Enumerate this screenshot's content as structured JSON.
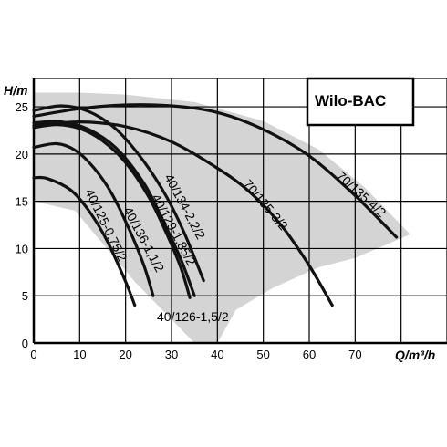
{
  "chart_data": {
    "type": "line",
    "title": "Wilo-BAC",
    "xlabel": "Q/m³/h",
    "ylabel": "H/m",
    "xlim": [
      0,
      90
    ],
    "ylim": [
      0,
      28
    ],
    "x_ticks": [
      0,
      10,
      20,
      30,
      40,
      50,
      60,
      70
    ],
    "y_ticks": [
      0,
      5,
      10,
      15,
      20,
      25
    ],
    "grid": true,
    "legend": "none",
    "colors": {
      "curve": "#111111",
      "grid": "#000000",
      "region": "#d4d4d4"
    },
    "operating_region": [
      [
        0,
        26.5
      ],
      [
        10,
        26.5
      ],
      [
        20,
        26.3
      ],
      [
        35,
        25.5
      ],
      [
        50,
        23.5
      ],
      [
        62,
        20.5
      ],
      [
        72,
        16.5
      ],
      [
        82,
        11.5
      ],
      [
        70,
        9
      ],
      [
        62,
        8
      ],
      [
        52,
        5.8
      ],
      [
        44,
        3.5
      ],
      [
        40,
        0
      ],
      [
        35,
        0
      ],
      [
        22,
        6.5
      ],
      [
        9,
        14
      ],
      [
        0,
        15
      ]
    ],
    "series": [
      {
        "name": "40/125-0,75/2",
        "x": [
          0,
          3,
          8,
          12,
          16,
          20,
          22
        ],
        "y": [
          17.5,
          17.4,
          16.2,
          14,
          10.8,
          6.5,
          4
        ]
      },
      {
        "name": "40/136-1,1/2",
        "x": [
          0,
          5,
          9,
          13,
          17,
          21,
          24,
          26
        ],
        "y": [
          20.7,
          21.1,
          20.4,
          18.6,
          15.8,
          11.8,
          8.2,
          5
        ]
      },
      {
        "name": "40/126-1,5/2",
        "x": [
          0,
          5,
          10,
          15,
          20,
          25,
          29,
          32,
          34
        ],
        "y": [
          22.8,
          23.1,
          22.7,
          21.4,
          19.1,
          15.5,
          11.5,
          8,
          4.8
        ]
      },
      {
        "name": "40/129-1,85/2",
        "x": [
          0,
          6,
          12,
          18,
          24,
          28,
          32,
          35
        ],
        "y": [
          23.3,
          23.4,
          22.6,
          20.6,
          16.9,
          13.1,
          8.9,
          5
        ]
      },
      {
        "name": "40/134-2,2/2",
        "x": [
          0,
          6,
          12,
          18,
          24,
          29,
          33,
          37
        ],
        "y": [
          24.6,
          25.1,
          24.5,
          22.6,
          19.2,
          15.4,
          11.4,
          6.6
        ]
      },
      {
        "name": "70/135-3/2",
        "x": [
          0,
          10,
          20,
          30,
          40,
          47,
          54,
          60,
          65
        ],
        "y": [
          23,
          23.4,
          22.9,
          21.3,
          18.5,
          16,
          12.4,
          8.2,
          4
        ]
      },
      {
        "name": "70/135-4/2",
        "x": [
          0,
          10,
          20,
          30,
          40,
          50,
          60,
          70,
          79
        ],
        "y": [
          24,
          24.8,
          25.2,
          25.1,
          24.4,
          22.6,
          19.8,
          15.6,
          11.2
        ]
      }
    ]
  }
}
